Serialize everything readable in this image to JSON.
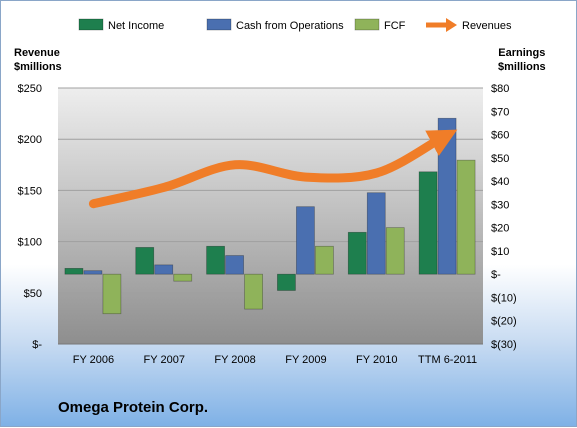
{
  "chart_data": {
    "type": "bar",
    "categories": [
      "FY 2006",
      "FY 2007",
      "FY 2008",
      "FY 2009",
      "FY 2010",
      "TTM 6-2011"
    ],
    "series": [
      {
        "name": "Net Income",
        "axis": "right",
        "values": [
          2.5,
          11.5,
          12,
          -7,
          18,
          44
        ],
        "color": "#1e7f4e"
      },
      {
        "name": "Cash from Operations",
        "axis": "right",
        "values": [
          1.5,
          4,
          8,
          29,
          35,
          67
        ],
        "color": "#4a6fb0"
      },
      {
        "name": "FCF",
        "axis": "right",
        "values": [
          -17,
          -3,
          -15,
          12,
          20,
          49
        ],
        "color": "#8fb35a"
      },
      {
        "name": "Revenues",
        "axis": "left",
        "type": "line",
        "values": [
          137,
          153,
          175,
          163,
          167,
          200
        ],
        "color": "#f07d28"
      }
    ],
    "left_axis": {
      "title_lines": [
        "Revenue",
        "$millions"
      ],
      "ylim": [
        0,
        250
      ],
      "ticks": [
        0,
        50,
        100,
        150,
        200,
        250
      ],
      "tick_labels": [
        "$-",
        "$50",
        "$100",
        "$150",
        "$200",
        "$250"
      ]
    },
    "right_axis": {
      "title_lines": [
        "Earnings",
        "$millions"
      ],
      "ylim": [
        -30,
        80
      ],
      "ticks": [
        -30,
        -20,
        -10,
        0,
        10,
        20,
        30,
        40,
        50,
        60,
        70,
        80
      ],
      "tick_labels": [
        "$(30)",
        "$(20)",
        "$(10)",
        "$-",
        "$10",
        "$20",
        "$30",
        "$40",
        "$50",
        "$60",
        "$70",
        "$80"
      ]
    },
    "legend": {
      "position": "top",
      "entries": [
        "Net Income",
        "Cash from Operations",
        "FCF",
        "Revenues"
      ]
    },
    "grid": true,
    "company": "Omega Protein Corp."
  }
}
